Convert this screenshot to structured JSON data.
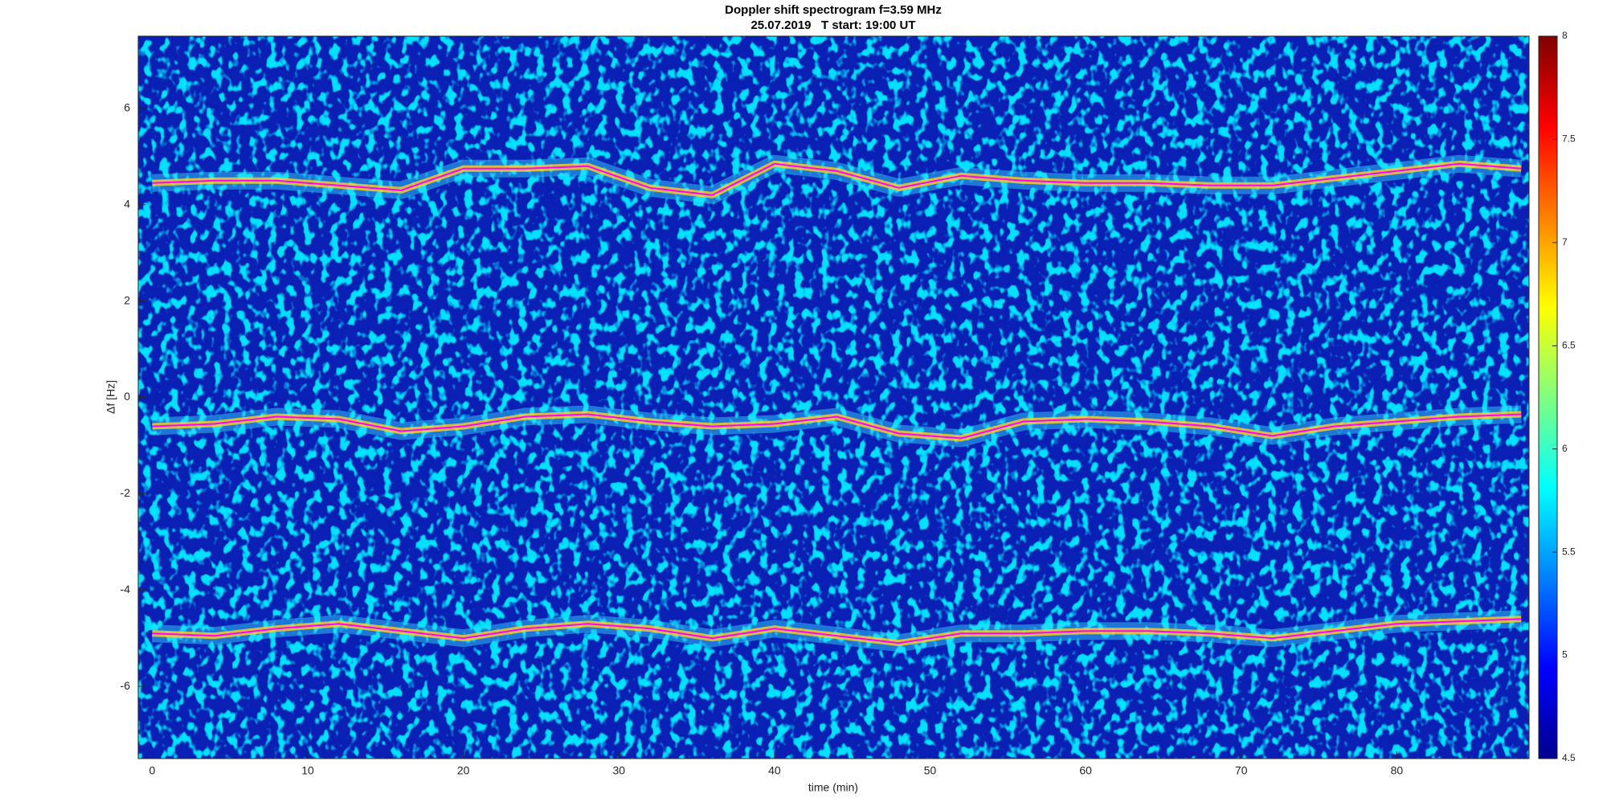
{
  "chart_data": {
    "type": "spectrogram",
    "title": "Doppler shift spectrogram f=3.59 MHz",
    "subtitle": "25.07.2019   T start: 19:00 UT",
    "x_label": "time (min)",
    "y_label": "Δf [Hz]",
    "x": [
      0,
      4,
      8,
      12,
      16,
      20,
      24,
      28,
      32,
      36,
      40,
      44,
      48,
      52,
      56,
      60,
      64,
      68,
      72,
      76,
      80,
      84,
      88
    ],
    "series": [
      {
        "color": "#ff00ff",
        "values": [
          4.45,
          4.5,
          4.5,
          4.4,
          4.3,
          4.75,
          4.75,
          4.8,
          4.35,
          4.2,
          4.85,
          4.7,
          4.35,
          4.6,
          4.5,
          4.45,
          4.45,
          4.4,
          4.4,
          4.55,
          4.7,
          4.85,
          4.75
        ]
      },
      {
        "color": "#ff00ff",
        "values": [
          -0.6,
          -0.55,
          -0.4,
          -0.45,
          -0.7,
          -0.6,
          -0.4,
          -0.35,
          -0.5,
          -0.6,
          -0.55,
          -0.4,
          -0.75,
          -0.85,
          -0.5,
          -0.45,
          -0.5,
          -0.6,
          -0.8,
          -0.6,
          -0.5,
          -0.4,
          -0.35
        ]
      },
      {
        "color": "#ff00ff",
        "values": [
          -4.9,
          -4.95,
          -4.8,
          -4.7,
          -4.85,
          -5.0,
          -4.8,
          -4.7,
          -4.8,
          -5.0,
          -4.8,
          -4.95,
          -5.1,
          -4.9,
          -4.9,
          -4.85,
          -4.85,
          -4.9,
          -5.0,
          -4.85,
          -4.7,
          -4.65,
          -4.6
        ]
      }
    ],
    "xlim": [
      -0.9,
      88.5
    ],
    "xticks": [
      0,
      10,
      20,
      30,
      40,
      50,
      60,
      70,
      80
    ],
    "ylim": [
      -7.5,
      7.5
    ],
    "yticks": [
      -6,
      -4,
      -2,
      0,
      2,
      4,
      6
    ],
    "colormap": "jet",
    "clim": [
      4.5,
      8
    ],
    "cticks": [
      4.5,
      5,
      5.5,
      6,
      6.5,
      7,
      7.5,
      8
    ]
  }
}
